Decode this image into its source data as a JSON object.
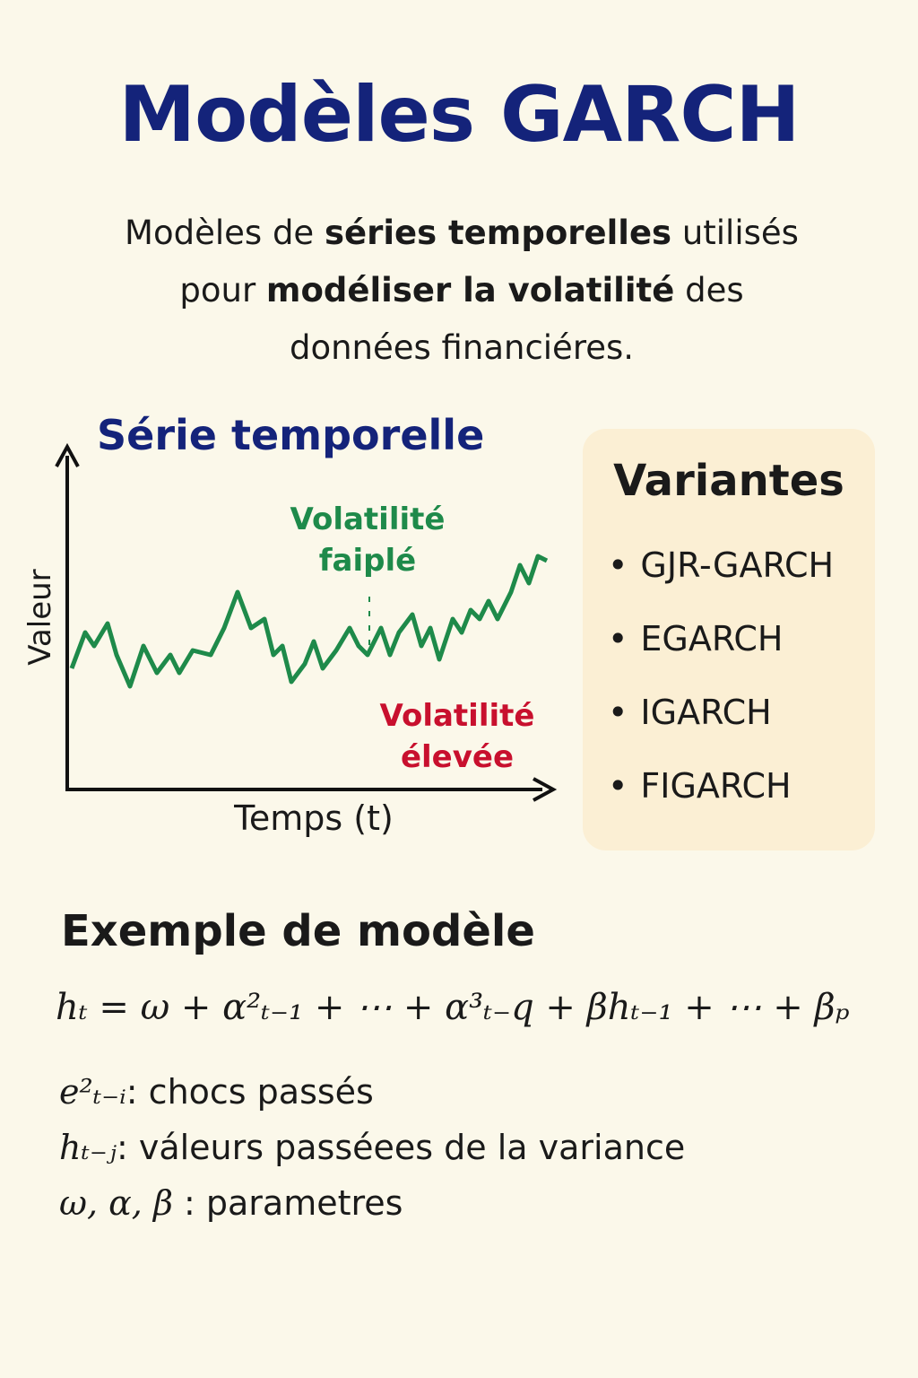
{
  "header": {
    "title": "Modèles GARCH",
    "intro": [
      "Modèles de ",
      "séries temporelles",
      " utilisés",
      "pour ",
      "modéliser la volatilité",
      " des",
      "données financiéres."
    ]
  },
  "illustration": {
    "title": "Série temporelle",
    "y_label": "Valeur",
    "x_label": "Temps (t)",
    "low_volatility": [
      "Volatilité",
      "faiplé"
    ],
    "high_volatility": [
      "Volatilité",
      "élevée"
    ]
  },
  "variants": {
    "title": "Variantes",
    "items": [
      "GJR-GARCH",
      "EGARCH",
      "IGARCH",
      "FIGARCH"
    ]
  },
  "example": {
    "title": "Exemple de modèle",
    "formula": "hₜ = ω + α²ₜ₋₁ + ⋯ + α³ₜ₋q + βhₜ₋₁ + ⋯ + βₚ",
    "definitions": [
      {
        "symbol": "e²ₜ₋ᵢ",
        "text": ": chocs passés"
      },
      {
        "symbol": "hₜ₋ⱼ",
        "text": ": váleurs passéees de la variance"
      },
      {
        "symbol": "ω, α, β",
        "text": " : parametres"
      }
    ]
  }
}
